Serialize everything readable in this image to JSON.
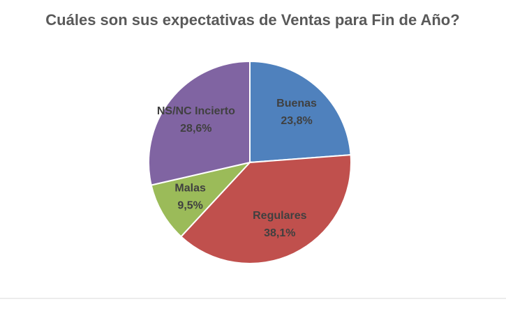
{
  "chart_data": {
    "type": "pie",
    "title": "Cuáles son sus expectativas de Ventas para Fin de Año?",
    "categories": [
      "Buenas",
      "Regulares",
      "Malas",
      "NS/NC Incierto"
    ],
    "values": [
      23.8,
      38.1,
      9.5,
      28.6
    ],
    "value_labels": [
      "23,8%",
      "38,1%",
      "9,5%",
      "28,6%"
    ],
    "colors": [
      "#4f81bd",
      "#c0504d",
      "#9bbb59",
      "#8064a2"
    ]
  }
}
